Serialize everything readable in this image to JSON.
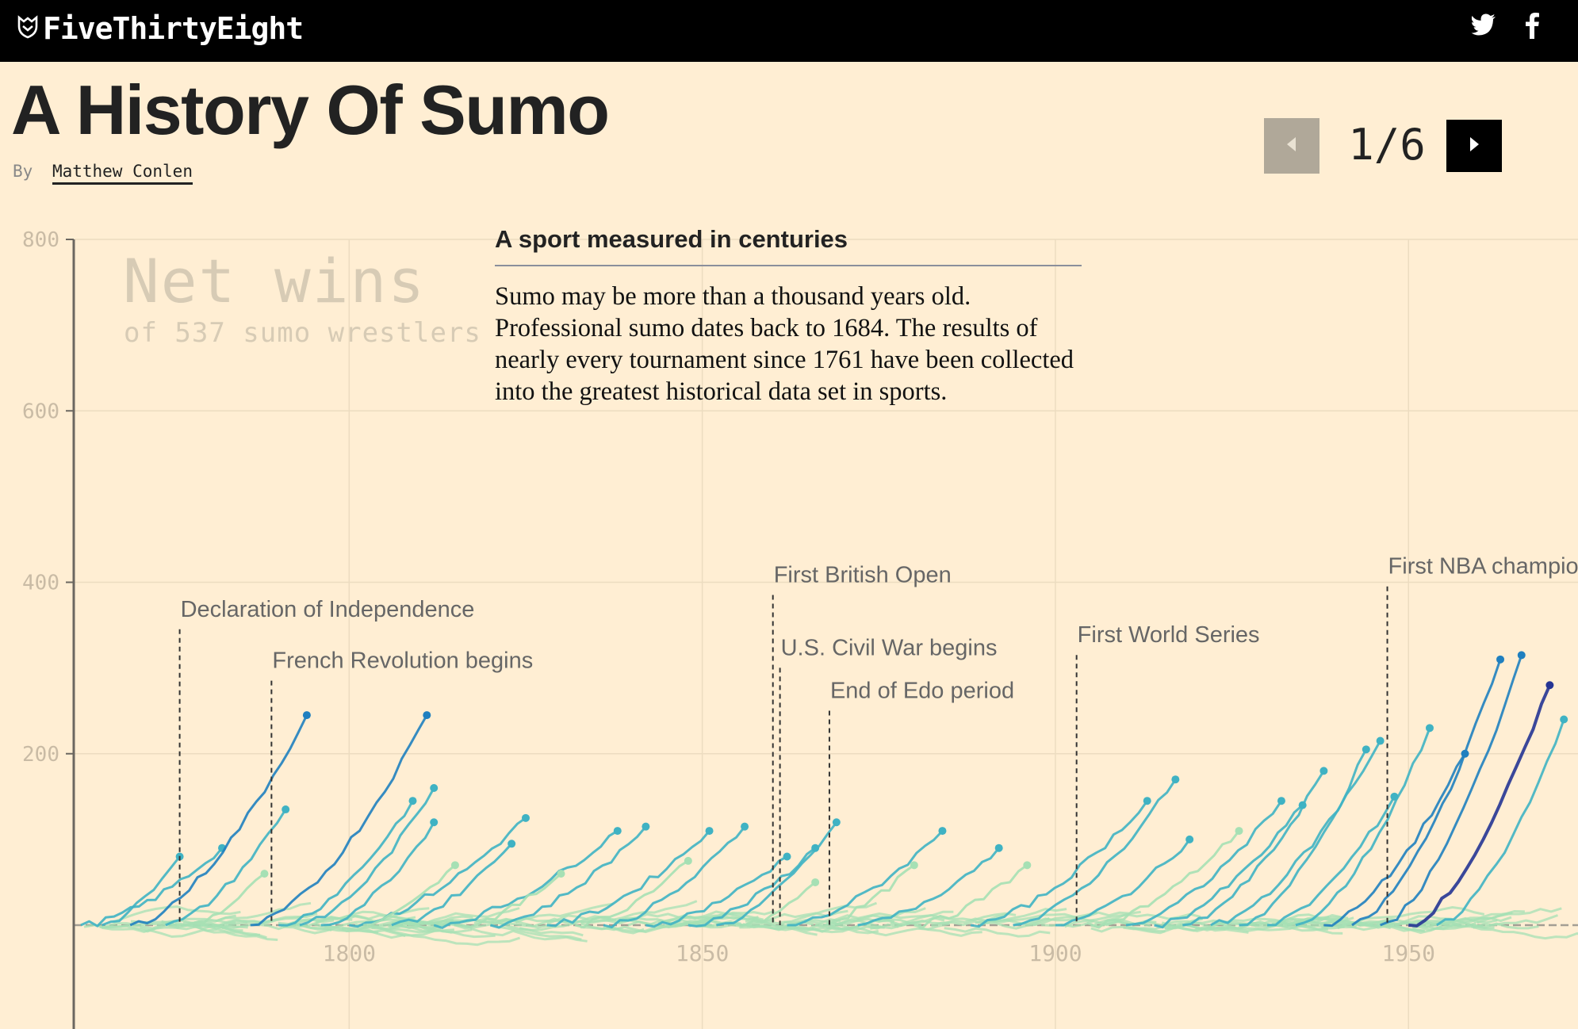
{
  "header": {
    "brand": "FiveThirtyEight",
    "logo_icon": "fox-icon",
    "social": [
      "twitter-icon",
      "facebook-icon"
    ]
  },
  "article": {
    "title": "A History Of Sumo",
    "byline_prefix": "By",
    "author": "Matthew Conlen"
  },
  "pager": {
    "current": "1",
    "separator": "/",
    "total": "6",
    "prev_icon": "arrow-left-icon",
    "next_icon": "arrow-right-icon"
  },
  "note": {
    "title": "A sport measured in centuries",
    "body": "Sumo may be more than a thousand years old. Professional sumo dates back to 1684. The results of nearly every tournament since 1761 have been collected into the greatest historical data set in sports."
  },
  "chart_data": {
    "type": "line",
    "title": "Net wins",
    "subtitle": "of 537 sumo wrestlers",
    "xlim": [
      1761,
      1974
    ],
    "ylim": [
      -120,
      800
    ],
    "y_ticks": [
      200,
      400,
      600,
      800
    ],
    "x_ticks": [
      1800,
      1850,
      1900,
      1950
    ],
    "grid": true,
    "colors": {
      "light": "#a6e0b4",
      "mid": "#3fb2c3",
      "dark": "#1f7fbf",
      "darkest": "#253494"
    },
    "events": [
      {
        "year": 1776,
        "label": "Declaration of Independence",
        "label_y": 360
      },
      {
        "year": 1789,
        "label": "French Revolution begins",
        "label_y": 300
      },
      {
        "year": 1860,
        "label": "First British Open",
        "label_y": 400
      },
      {
        "year": 1861,
        "label": "U.S. Civil War begins",
        "label_y": 315
      },
      {
        "year": 1868,
        "label": "End of Edo period",
        "label_y": 265
      },
      {
        "year": 1903,
        "label": "First World Series",
        "label_y": 330
      },
      {
        "year": 1947,
        "label": "First NBA championship",
        "label_y": 410
      }
    ],
    "series": [
      {
        "start": 1762,
        "end": 1782,
        "value": 90,
        "tone": "mid"
      },
      {
        "start": 1765,
        "end": 1776,
        "value": 80,
        "tone": "mid"
      },
      {
        "start": 1769,
        "end": 1794,
        "value": 245,
        "tone": "dark"
      },
      {
        "start": 1774,
        "end": 1791,
        "value": 135,
        "tone": "mid"
      },
      {
        "start": 1777,
        "end": 1788,
        "value": 60,
        "tone": "light"
      },
      {
        "start": 1786,
        "end": 1811,
        "value": 245,
        "tone": "dark"
      },
      {
        "start": 1790,
        "end": 1809,
        "value": 145,
        "tone": "mid"
      },
      {
        "start": 1793,
        "end": 1812,
        "value": 160,
        "tone": "mid"
      },
      {
        "start": 1796,
        "end": 1812,
        "value": 120,
        "tone": "mid"
      },
      {
        "start": 1800,
        "end": 1825,
        "value": 125,
        "tone": "mid"
      },
      {
        "start": 1802,
        "end": 1815,
        "value": 70,
        "tone": "light"
      },
      {
        "start": 1806,
        "end": 1823,
        "value": 95,
        "tone": "mid"
      },
      {
        "start": 1812,
        "end": 1838,
        "value": 110,
        "tone": "mid"
      },
      {
        "start": 1816,
        "end": 1830,
        "value": 60,
        "tone": "light"
      },
      {
        "start": 1820,
        "end": 1842,
        "value": 115,
        "tone": "mid"
      },
      {
        "start": 1828,
        "end": 1851,
        "value": 110,
        "tone": "mid"
      },
      {
        "start": 1832,
        "end": 1848,
        "value": 75,
        "tone": "light"
      },
      {
        "start": 1836,
        "end": 1856,
        "value": 115,
        "tone": "mid"
      },
      {
        "start": 1842,
        "end": 1862,
        "value": 80,
        "tone": "mid"
      },
      {
        "start": 1848,
        "end": 1866,
        "value": 90,
        "tone": "mid"
      },
      {
        "start": 1852,
        "end": 1869,
        "value": 120,
        "tone": "mid"
      },
      {
        "start": 1856,
        "end": 1866,
        "value": 50,
        "tone": "light"
      },
      {
        "start": 1862,
        "end": 1884,
        "value": 110,
        "tone": "mid"
      },
      {
        "start": 1866,
        "end": 1880,
        "value": 70,
        "tone": "light"
      },
      {
        "start": 1872,
        "end": 1892,
        "value": 90,
        "tone": "mid"
      },
      {
        "start": 1880,
        "end": 1896,
        "value": 70,
        "tone": "light"
      },
      {
        "start": 1888,
        "end": 1913,
        "value": 145,
        "tone": "mid"
      },
      {
        "start": 1894,
        "end": 1917,
        "value": 170,
        "tone": "mid"
      },
      {
        "start": 1900,
        "end": 1919,
        "value": 100,
        "tone": "mid"
      },
      {
        "start": 1905,
        "end": 1926,
        "value": 110,
        "tone": "light"
      },
      {
        "start": 1910,
        "end": 1932,
        "value": 145,
        "tone": "mid"
      },
      {
        "start": 1914,
        "end": 1935,
        "value": 140,
        "tone": "mid"
      },
      {
        "start": 1918,
        "end": 1938,
        "value": 180,
        "tone": "mid"
      },
      {
        "start": 1922,
        "end": 1946,
        "value": 215,
        "tone": "mid"
      },
      {
        "start": 1926,
        "end": 1944,
        "value": 205,
        "tone": "mid"
      },
      {
        "start": 1930,
        "end": 1948,
        "value": 150,
        "tone": "mid"
      },
      {
        "start": 1934,
        "end": 1953,
        "value": 230,
        "tone": "mid"
      },
      {
        "start": 1938,
        "end": 1958,
        "value": 200,
        "tone": "dark"
      },
      {
        "start": 1942,
        "end": 1963,
        "value": 310,
        "tone": "dark"
      },
      {
        "start": 1946,
        "end": 1966,
        "value": 315,
        "tone": "dark"
      },
      {
        "start": 1950,
        "end": 1970,
        "value": 280,
        "tone": "darkest"
      },
      {
        "start": 1954,
        "end": 1972,
        "value": 240,
        "tone": "mid"
      }
    ]
  }
}
